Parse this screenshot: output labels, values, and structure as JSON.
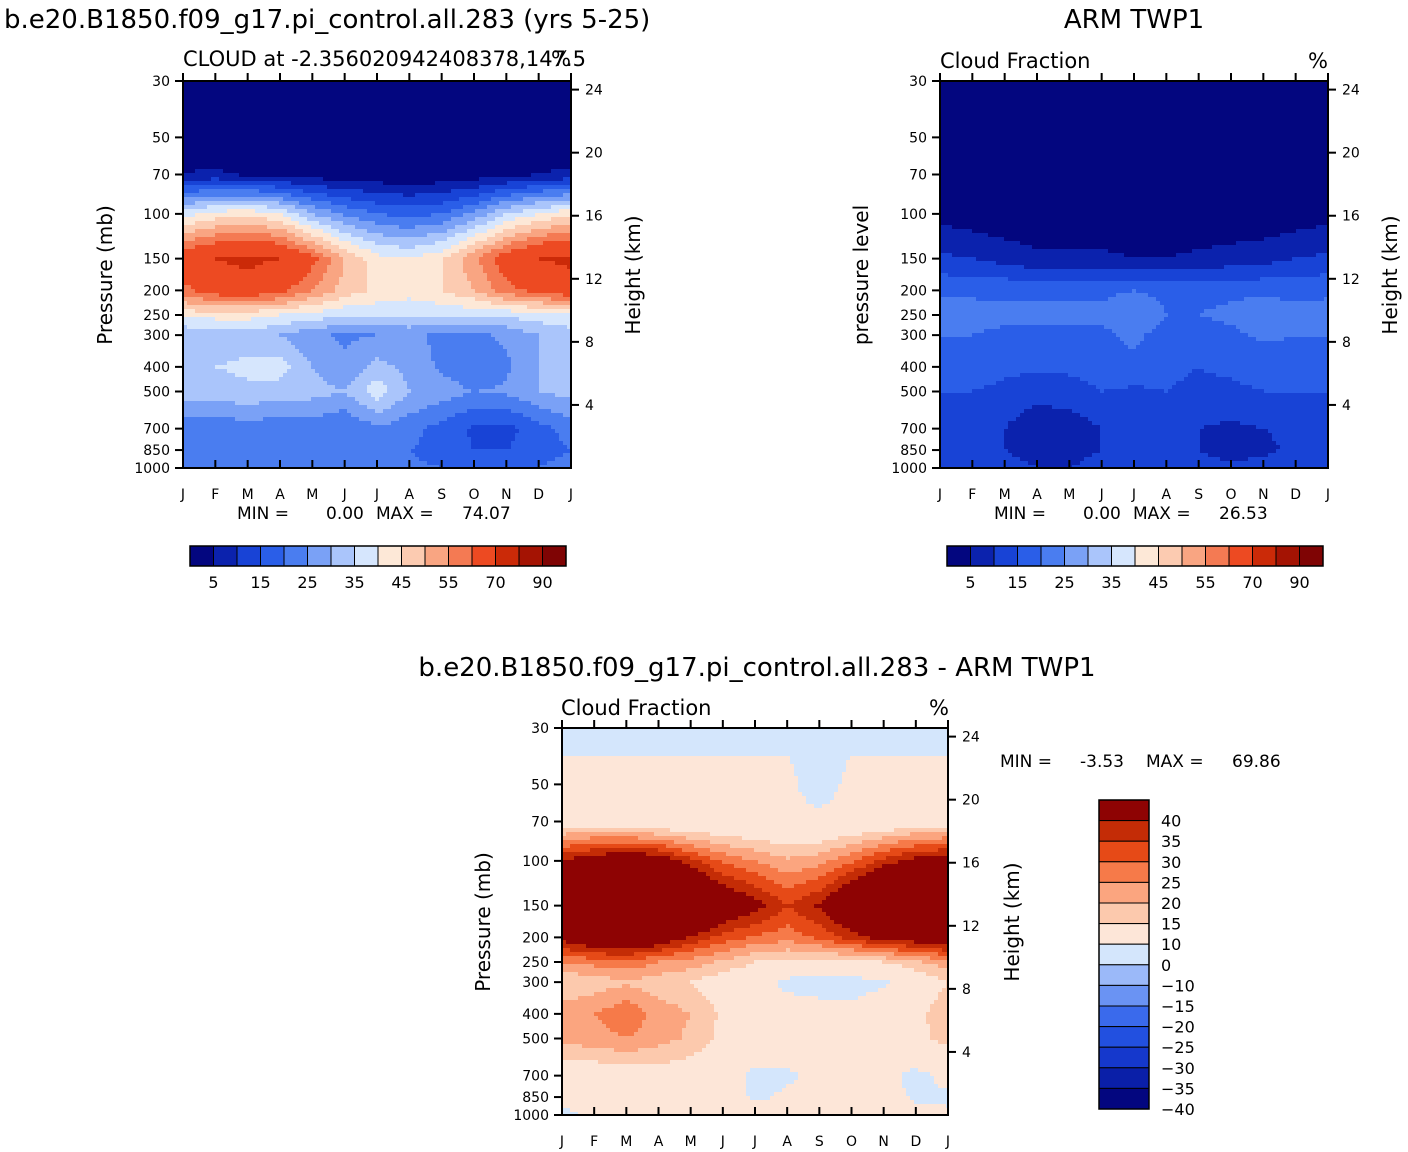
{
  "panels": [
    {
      "id": "model",
      "title": "b.e20.B1850.f09_g17.pi_control.all.283 (yrs 5-25)",
      "subtitle": "CLOUD at -2.356020942408378,147.5",
      "units": "%",
      "ylabel": "Pressure  (mb)",
      "ylabel_right": "Height  (km)",
      "min_label": "MIN =",
      "min_value": "0.00",
      "max_label": "MAX =",
      "max_value": "74.07"
    },
    {
      "id": "obs",
      "title": "ARM  TWP1",
      "subtitle": "Cloud  Fraction",
      "units": "%",
      "ylabel": "pressure  level",
      "ylabel_right": "Height  (km)",
      "min_label": "MIN =",
      "min_value": "0.00",
      "max_label": "MAX =",
      "max_value": "26.53"
    },
    {
      "id": "diff",
      "title": "b.e20.B1850.f09_g17.pi_control.all.283  -  ARM  TWP1",
      "subtitle": "Cloud  Fraction",
      "units": "%",
      "ylabel": "Pressure  (mb)",
      "ylabel_right": "Height  (km)",
      "min_label": "MIN =",
      "min_value": "-3.53",
      "max_label": "MAX =",
      "max_value": "69.86"
    }
  ],
  "chart_data": [
    {
      "type": "heatmap",
      "panel": "model",
      "x": [
        "J",
        "F",
        "M",
        "A",
        "M",
        "J",
        "J",
        "A",
        "S",
        "O",
        "N",
        "D",
        "J"
      ],
      "y_pressure": [
        1000,
        850,
        700,
        500,
        400,
        300,
        250,
        200,
        150,
        100,
        70,
        50,
        30
      ],
      "y_height_ticks": [
        4,
        8,
        12,
        16,
        20,
        24
      ],
      "values": [
        [
          22,
          22,
          22,
          22,
          22,
          21,
          22,
          21,
          20,
          18,
          18,
          20,
          22
        ],
        [
          20,
          20,
          20,
          20,
          20,
          20,
          21,
          20,
          18,
          15,
          15,
          18,
          20
        ],
        [
          22,
          22,
          22,
          22,
          22,
          20,
          24,
          22,
          18,
          14,
          13,
          18,
          22
        ],
        [
          32,
          33,
          34,
          33,
          32,
          30,
          38,
          30,
          28,
          25,
          26,
          30,
          32
        ],
        [
          34,
          35,
          36,
          37,
          30,
          26,
          32,
          28,
          24,
          20,
          24,
          30,
          34
        ],
        [
          30,
          32,
          33,
          30,
          26,
          24,
          25,
          26,
          24,
          24,
          26,
          30,
          32
        ],
        [
          42,
          42,
          42,
          40,
          38,
          36,
          36,
          36,
          36,
          36,
          36,
          38,
          40
        ],
        [
          58,
          64,
          66,
          62,
          55,
          48,
          44,
          42,
          45,
          50,
          58,
          62,
          66
        ],
        [
          66,
          70,
          72,
          70,
          62,
          50,
          42,
          40,
          44,
          54,
          64,
          70,
          72
        ],
        [
          38,
          42,
          44,
          40,
          30,
          24,
          20,
          18,
          20,
          26,
          35,
          40,
          44
        ],
        [
          5,
          6,
          4,
          3,
          2,
          2,
          1,
          1,
          1,
          2,
          3,
          5,
          6
        ],
        [
          1,
          1,
          1,
          1,
          1,
          1,
          1,
          1,
          1,
          1,
          1,
          1,
          1
        ],
        [
          0,
          0,
          0,
          0,
          0,
          0,
          0,
          0,
          0,
          0,
          0,
          0,
          0
        ]
      ],
      "levels": [
        0,
        5,
        10,
        15,
        20,
        25,
        30,
        35,
        40,
        45,
        50,
        55,
        60,
        70,
        80,
        90
      ],
      "colorbar_labels": [
        "5",
        "15",
        "25",
        "35",
        "45",
        "55",
        "70",
        "90"
      ],
      "colors": [
        "#03067f",
        "#0b22ad",
        "#1843d6",
        "#2a5ee8",
        "#4a7df0",
        "#7aa1f6",
        "#aac5fb",
        "#d6e6fd",
        "#fde8d7",
        "#fccbb1",
        "#f9a582",
        "#f47a53",
        "#ed4a22",
        "#cb2a08",
        "#a41303",
        "#7f0404"
      ]
    },
    {
      "type": "heatmap",
      "panel": "obs",
      "x": [
        "J",
        "F",
        "M",
        "A",
        "M",
        "J",
        "J",
        "A",
        "S",
        "O",
        "N",
        "D",
        "J"
      ],
      "y_pressure": [
        1000,
        850,
        700,
        500,
        400,
        300,
        250,
        200,
        150,
        100,
        70,
        50,
        30
      ],
      "y_height_ticks": [
        4,
        8,
        12,
        16,
        20,
        24
      ],
      "values": [
        [
          14,
          13,
          12,
          10,
          10,
          12,
          11,
          12,
          12,
          11,
          12,
          13,
          14
        ],
        [
          12,
          11,
          10,
          8,
          8,
          10,
          12,
          11,
          10,
          8,
          9,
          11,
          12
        ],
        [
          13,
          12,
          10,
          6,
          7,
          10,
          11,
          11,
          10,
          9,
          10,
          11,
          13
        ],
        [
          15,
          15,
          14,
          12,
          13,
          15,
          14,
          15,
          14,
          14,
          15,
          15,
          15
        ],
        [
          17,
          17,
          16,
          16,
          16,
          17,
          19,
          16,
          15,
          16,
          17,
          17,
          17
        ],
        [
          20,
          20,
          19,
          19,
          19,
          19,
          21,
          18,
          18,
          19,
          21,
          20,
          20
        ],
        [
          22,
          22,
          21,
          21,
          21,
          21,
          24,
          20,
          20,
          21,
          23,
          21,
          22
        ],
        [
          19,
          19,
          19,
          19,
          19,
          19,
          20,
          19,
          19,
          19,
          19,
          19,
          19
        ],
        [
          11,
          10,
          8,
          6,
          6,
          6,
          5,
          5,
          6,
          7,
          8,
          10,
          11
        ],
        [
          3,
          2,
          1,
          1,
          1,
          1,
          1,
          1,
          1,
          1,
          1,
          2,
          3
        ],
        [
          0,
          0,
          0,
          0,
          0,
          0,
          0,
          0,
          0,
          0,
          0,
          0,
          0
        ],
        [
          0,
          0,
          0,
          0,
          0,
          0,
          0,
          0,
          0,
          0,
          0,
          0,
          0
        ],
        [
          0,
          0,
          0,
          0,
          0,
          0,
          0,
          0,
          0,
          0,
          0,
          0,
          0
        ]
      ],
      "levels": [
        0,
        5,
        10,
        15,
        20,
        25,
        30,
        35,
        40,
        45,
        50,
        55,
        60,
        70,
        80,
        90
      ],
      "colorbar_labels": [
        "5",
        "15",
        "25",
        "35",
        "45",
        "55",
        "70",
        "90"
      ],
      "colors": [
        "#03067f",
        "#0b22ad",
        "#1843d6",
        "#2a5ee8",
        "#4a7df0",
        "#7aa1f6",
        "#aac5fb",
        "#d6e6fd",
        "#fde8d7",
        "#fccbb1",
        "#f9a582",
        "#f47a53",
        "#ed4a22",
        "#cb2a08",
        "#a41303",
        "#7f0404"
      ]
    },
    {
      "type": "heatmap",
      "panel": "diff",
      "x": [
        "J",
        "F",
        "M",
        "A",
        "M",
        "J",
        "J",
        "A",
        "S",
        "O",
        "N",
        "D",
        "J"
      ],
      "y_pressure": [
        1000,
        850,
        700,
        500,
        400,
        300,
        250,
        200,
        150,
        100,
        70,
        50,
        30
      ],
      "y_height_ticks": [
        4,
        8,
        12,
        16,
        20,
        24
      ],
      "values": [
        [
          -2,
          2,
          3,
          4,
          4,
          2,
          3,
          3,
          2,
          2,
          3,
          2,
          1
        ],
        [
          2,
          3,
          4,
          4,
          4,
          3,
          -1,
          1,
          2,
          3,
          3,
          -1,
          -1
        ],
        [
          4,
          5,
          6,
          7,
          6,
          4,
          -2,
          -1,
          2,
          3,
          2,
          -2,
          2
        ],
        [
          17,
          18,
          20,
          17,
          14,
          8,
          6,
          4,
          3,
          4,
          6,
          8,
          12
        ],
        [
          18,
          20,
          24,
          18,
          15,
          9,
          5,
          4,
          3,
          2,
          5,
          8,
          14
        ],
        [
          10,
          12,
          14,
          12,
          10,
          6,
          4,
          -2,
          -3,
          -3,
          -1,
          4,
          10
        ],
        [
          20,
          22,
          24,
          20,
          18,
          14,
          10,
          8,
          8,
          8,
          10,
          14,
          18
        ],
        [
          38,
          44,
          46,
          42,
          34,
          28,
          24,
          22,
          26,
          32,
          38,
          40,
          44
        ],
        [
          55,
          60,
          64,
          62,
          56,
          44,
          38,
          30,
          36,
          48,
          58,
          62,
          60
        ],
        [
          36,
          40,
          44,
          40,
          32,
          24,
          20,
          16,
          18,
          24,
          32,
          38,
          40
        ],
        [
          5,
          6,
          4,
          3,
          2,
          2,
          1,
          1,
          1,
          2,
          3,
          5,
          6
        ],
        [
          1,
          1,
          1,
          1,
          1,
          1,
          1,
          1,
          -2,
          1,
          1,
          1,
          1
        ],
        [
          -1,
          -1,
          -1,
          -1,
          -1,
          -1,
          -1,
          -1,
          -1,
          -1,
          -1,
          -1,
          -1
        ]
      ],
      "levels": [
        -45,
        -40,
        -35,
        -30,
        -25,
        -20,
        -15,
        -10,
        0,
        10,
        15,
        20,
        25,
        30,
        35,
        40,
        45
      ],
      "colorbar_labels": [
        "40",
        "35",
        "30",
        "25",
        "20",
        "15",
        "10",
        "0",
        "-10",
        "-15",
        "-20",
        "-25",
        "-30",
        "-35",
        "-40"
      ],
      "colors": [
        "#03067f",
        "#0a1fa8",
        "#1538cc",
        "#2250e0",
        "#3a6aec",
        "#6a93f3",
        "#9bb9f9",
        "#d4e6fc",
        "#fde6d8",
        "#fcc9ad",
        "#fba57f",
        "#f67a49",
        "#e64a17",
        "#c42c06",
        "#8e0303"
      ]
    }
  ]
}
